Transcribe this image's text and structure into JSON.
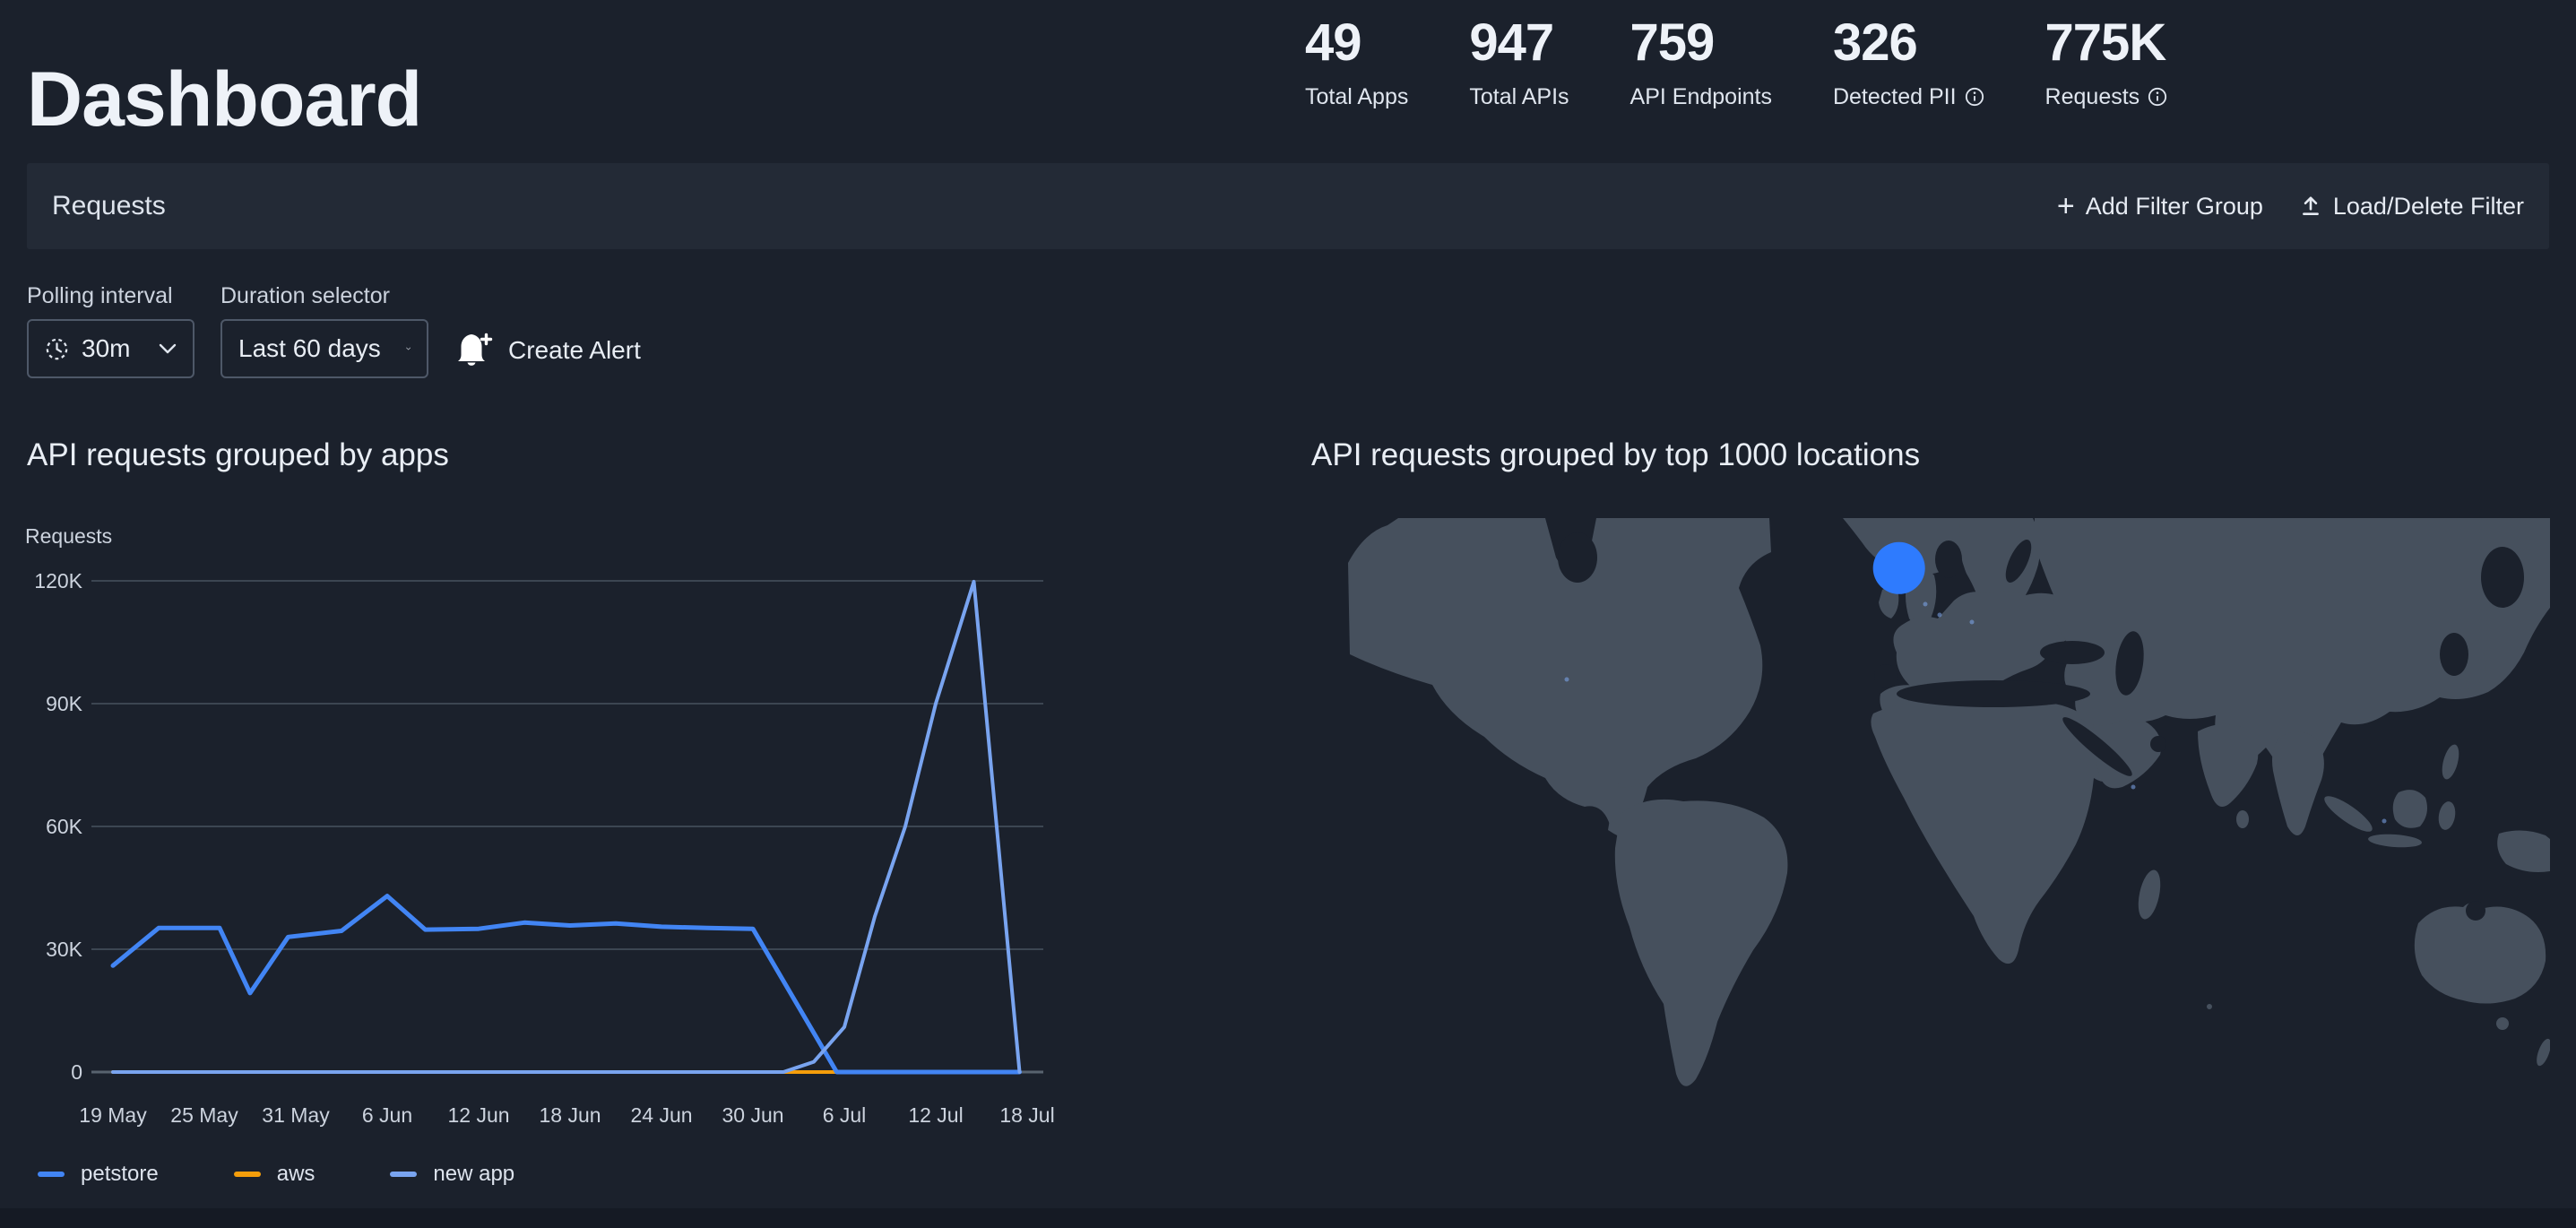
{
  "colors": {
    "page_bg": "#1b212c",
    "panel_bg": "#232a36",
    "text_primary": "#eef2f8",
    "text_secondary": "#ccd3de",
    "grid": "#3c4652",
    "axis": "#58636f",
    "map_land": "#46505d",
    "bubble_blue": "#2e7bfe",
    "petstore_blue": "#4285f4",
    "aws_orange": "#f59e0b",
    "new_app_blue": "#79a4f0"
  },
  "header": {
    "title": "Dashboard",
    "stats": [
      {
        "value": "49",
        "label": "Total Apps",
        "info": false
      },
      {
        "value": "947",
        "label": "Total APIs",
        "info": false
      },
      {
        "value": "759",
        "label": "API Endpoints",
        "info": false
      },
      {
        "value": "326",
        "label": "Detected PII",
        "info": true
      },
      {
        "value": "775K",
        "label": "Requests",
        "info": true
      }
    ]
  },
  "filter_bar": {
    "title": "Requests",
    "add_filter_label": "Add Filter Group",
    "load_delete_label": "Load/Delete Filter"
  },
  "controls": {
    "polling": {
      "label": "Polling interval",
      "value": "30m"
    },
    "duration": {
      "label": "Duration selector",
      "value": "Last 60 days"
    },
    "create_alert_label": "Create Alert"
  },
  "chart_data": [
    {
      "type": "line",
      "title": "API requests grouped by apps",
      "ylabel": "Requests",
      "ylim": [
        0,
        120000
      ],
      "grid": true,
      "legend_position": "bottom",
      "yticks": [
        {
          "label": "0",
          "value": 0
        },
        {
          "label": "30K",
          "value": 30000
        },
        {
          "label": "60K",
          "value": 60000
        },
        {
          "label": "90K",
          "value": 90000
        },
        {
          "label": "120K",
          "value": 120000
        }
      ],
      "x_axis": {
        "tick_labels": [
          "19 May",
          "25 May",
          "31 May",
          "6 Jun",
          "12 Jun",
          "18 Jun",
          "24 Jun",
          "30 Jun",
          "6 Jul",
          "12 Jul",
          "18 Jul"
        ],
        "days_per_tick": 6,
        "total_days": 60
      },
      "series": [
        {
          "name": "petstore",
          "color": "#4285f4",
          "width": 5,
          "points_day_value": [
            [
              0,
              26000
            ],
            [
              3,
              35200
            ],
            [
              7,
              35200
            ],
            [
              9,
              19300
            ],
            [
              11.5,
              33000
            ],
            [
              15,
              34500
            ],
            [
              18,
              43000
            ],
            [
              20.5,
              34800
            ],
            [
              24,
              35000
            ],
            [
              27,
              36500
            ],
            [
              30,
              35800
            ],
            [
              33,
              36300
            ],
            [
              36,
              35500
            ],
            [
              39,
              35200
            ],
            [
              42,
              35000
            ],
            [
              47.5,
              0
            ],
            [
              59.5,
              0
            ]
          ]
        },
        {
          "name": "aws",
          "color": "#f59e0b",
          "width": 4,
          "points_day_value": [
            [
              0,
              0
            ],
            [
              59.5,
              0
            ]
          ]
        },
        {
          "name": "new app",
          "color": "#79a4f0",
          "width": 4,
          "points_day_value": [
            [
              0,
              0
            ],
            [
              44,
              0
            ],
            [
              46,
              2500
            ],
            [
              48,
              11000
            ],
            [
              50,
              38000
            ],
            [
              52,
              60000
            ],
            [
              54,
              90000
            ],
            [
              56.5,
              119800
            ],
            [
              59.5,
              0
            ]
          ]
        }
      ]
    },
    {
      "type": "map",
      "title": "API requests grouped by top 1000 locations",
      "bubbles": [
        {
          "x_frac": 0.46,
          "y_frac": 0.082,
          "radius_px": 29,
          "color": "#2e7bfe",
          "approx_area": "United Kingdom / Ireland"
        }
      ]
    }
  ]
}
